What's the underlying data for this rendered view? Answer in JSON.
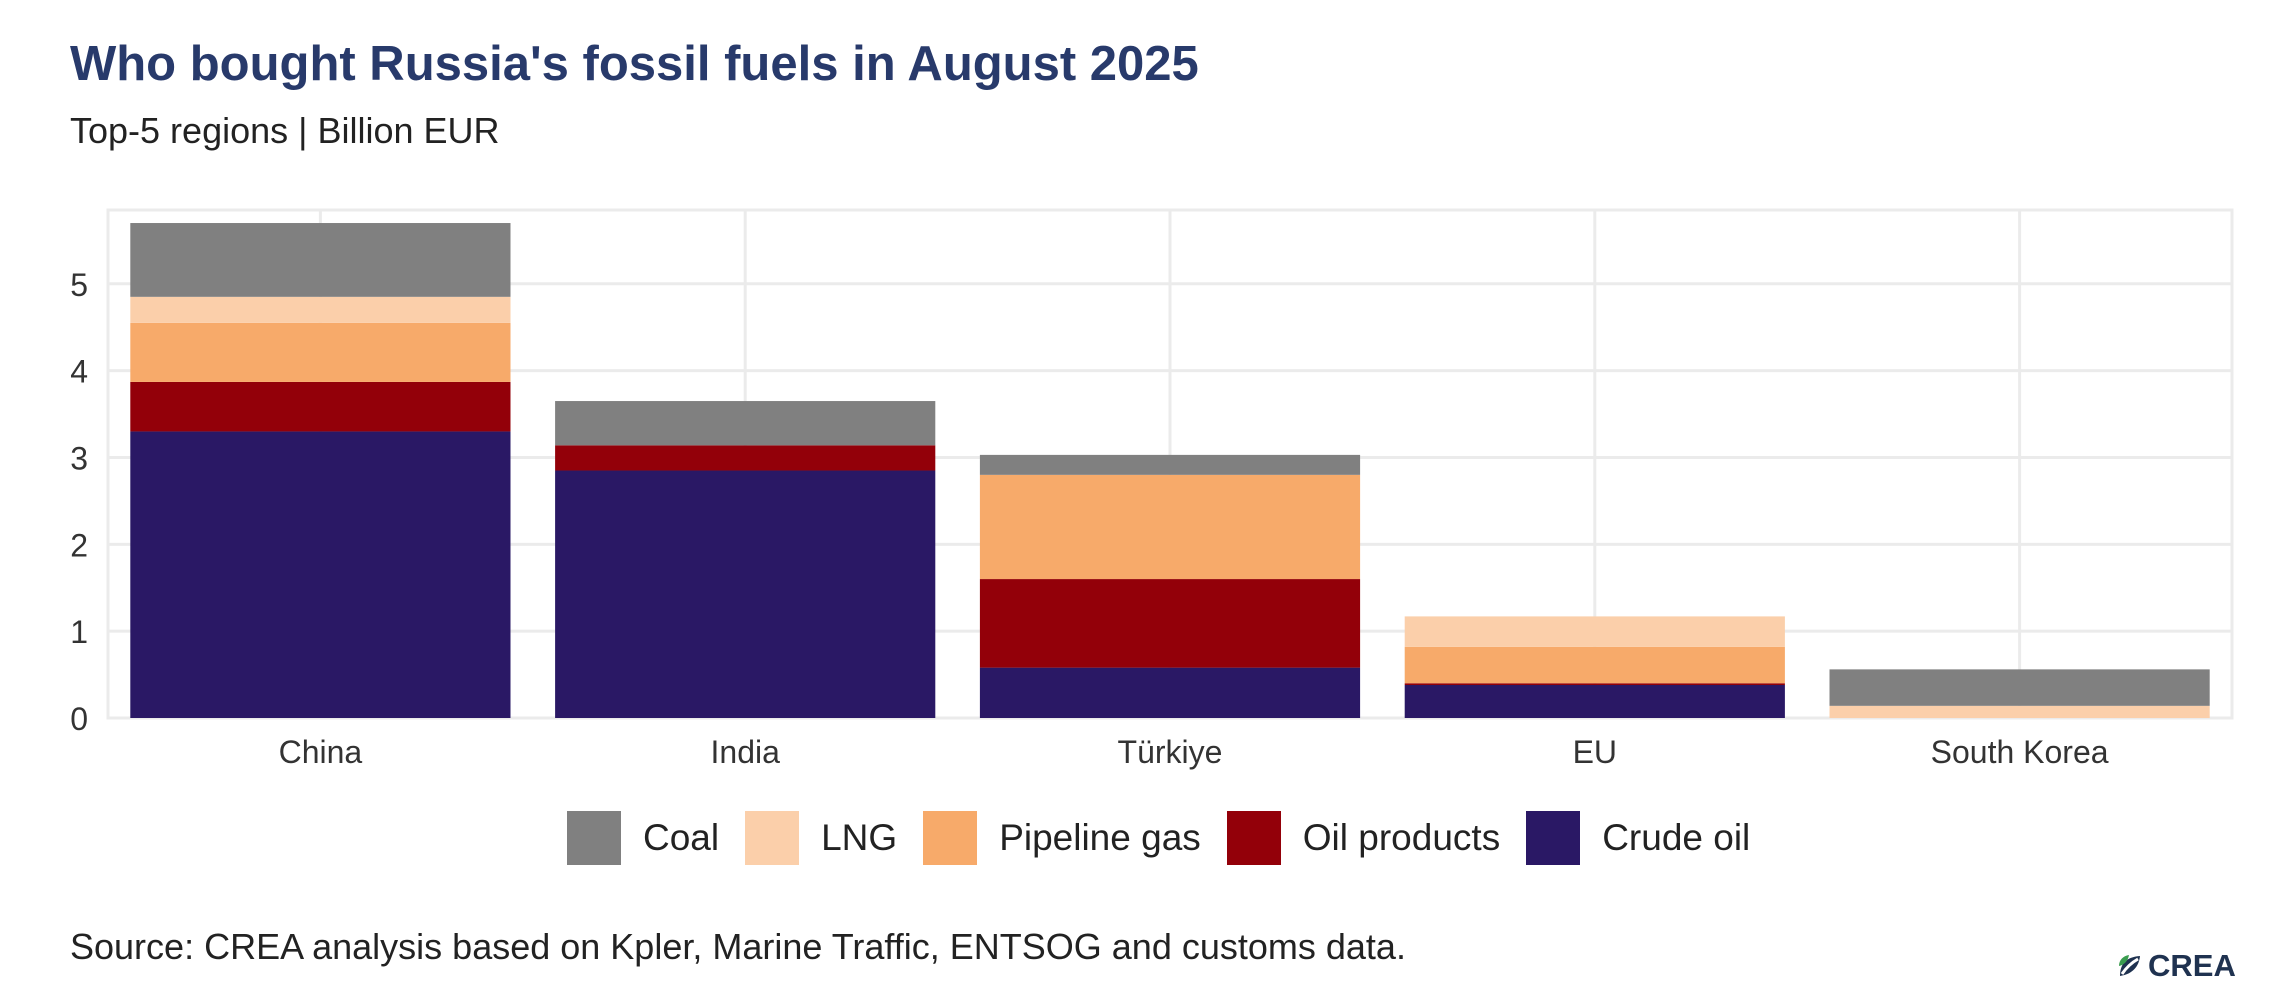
{
  "header": {
    "title": "Who bought Russia's fossil fuels in August 2025",
    "subtitle": "Top-5 regions | Billion EUR"
  },
  "footer": {
    "source": "Source: CREA analysis based on Kpler, Marine Traffic, ENTSOG and customs data.",
    "logo_text": "CREA"
  },
  "colors": {
    "Crude oil": "#2a1865",
    "Oil products": "#930009",
    "Pipeline gas": "#f7aa6a",
    "LNG": "#fbcfaa",
    "Coal": "#808080",
    "title": "#283a6b",
    "grid": "#ebebeb",
    "logo_text": "#1f3250",
    "logo_green": "#3a9d4f"
  },
  "legend": [
    {
      "label": "Coal",
      "color": "#808080"
    },
    {
      "label": "LNG",
      "color": "#fbcfaa"
    },
    {
      "label": "Pipeline gas",
      "color": "#f7aa6a"
    },
    {
      "label": "Oil products",
      "color": "#930009"
    },
    {
      "label": "Crude oil",
      "color": "#2a1865"
    }
  ],
  "chart_data": {
    "type": "bar",
    "stacked": true,
    "categories": [
      "China",
      "India",
      "Türkiye",
      "EU",
      "South Korea"
    ],
    "series": [
      {
        "name": "Crude oil",
        "values": [
          3.3,
          2.85,
          0.58,
          0.38,
          0.0
        ]
      },
      {
        "name": "Oil products",
        "values": [
          0.57,
          0.29,
          1.02,
          0.02,
          0.0
        ]
      },
      {
        "name": "Pipeline gas",
        "values": [
          0.68,
          0.0,
          1.2,
          0.42,
          0.0
        ]
      },
      {
        "name": "LNG",
        "values": [
          0.3,
          0.0,
          0.0,
          0.35,
          0.14
        ]
      },
      {
        "name": "Coal",
        "values": [
          0.85,
          0.51,
          0.23,
          0.0,
          0.42
        ]
      }
    ],
    "ylim": [
      0,
      5.85
    ],
    "yticks": [
      0,
      1,
      2,
      3,
      4,
      5
    ],
    "grid": true,
    "legend_position": "bottom"
  }
}
